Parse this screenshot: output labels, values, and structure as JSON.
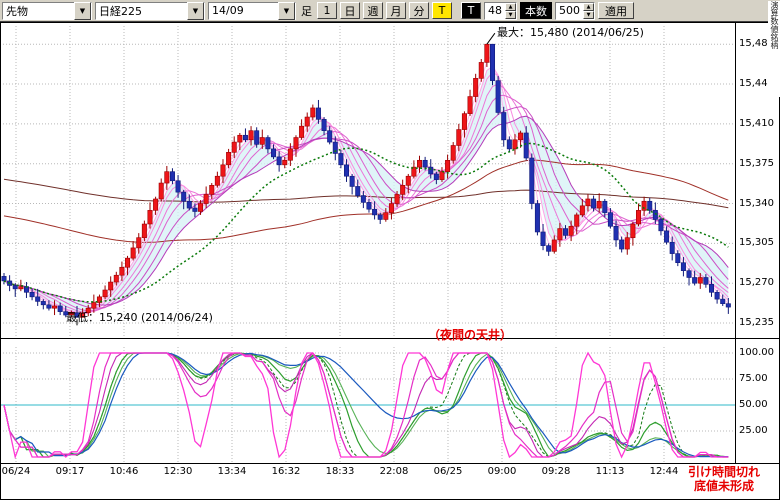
{
  "window": {
    "right_edge_vertical_label": "演算数値銘柄"
  },
  "toolbar": {
    "instrument": "先物",
    "symbol": "日経225",
    "contract_month": "14/09",
    "ashi_label": "足",
    "period_buttons": [
      "1",
      "日",
      "週",
      "月",
      "分"
    ],
    "tick_button": "T",
    "tick_label": "T",
    "tick_count": "48",
    "bars_label": "本数",
    "bars_count": "500",
    "apply_button": "適用",
    "active_color": "#ffe600",
    "dropdown_glyph": "▼",
    "spin_up_glyph": "▲",
    "spin_down_glyph": "▼"
  },
  "chart_data": {
    "type": "candlestick",
    "main": {
      "y_axis_labels": [
        "15,480",
        "15,445",
        "15,410",
        "15,375",
        "15,340",
        "15,305",
        "15,270",
        "15,235"
      ],
      "x_axis_labels": [
        "06/24",
        "09:17",
        "10:46",
        "12:30",
        "13:34",
        "16:32",
        "18:33",
        "22:08",
        "06/25",
        "09:00",
        "09:28",
        "11:13",
        "12:44"
      ],
      "session_high": 15480,
      "session_low": 15240,
      "candles_close": [
        15272,
        15268,
        15265,
        15267,
        15262,
        15258,
        15254,
        15251,
        15248,
        15250,
        15245,
        15242,
        15244,
        15240,
        15244,
        15248,
        15253,
        15258,
        15264,
        15271,
        15277,
        15284,
        15292,
        15301,
        15310,
        15322,
        15334,
        15344,
        15358,
        15368,
        15360,
        15350,
        15342,
        15336,
        15333,
        15340,
        15348,
        15356,
        15364,
        15374,
        15385,
        15394,
        15400,
        15396,
        15404,
        15392,
        15398,
        15388,
        15381,
        15374,
        15378,
        15388,
        15398,
        15408,
        15416,
        15424,
        15414,
        15404,
        15394,
        15384,
        15374,
        15364,
        15355,
        15347,
        15341,
        15335,
        15330,
        15326,
        15332,
        15340,
        15348,
        15356,
        15364,
        15372,
        15378,
        15372,
        15366,
        15361,
        15368,
        15378,
        15391,
        15405,
        15419,
        15434,
        15450,
        15464,
        15480,
        15448,
        15420,
        15396,
        15388,
        15396,
        15402,
        15380,
        15340,
        15315,
        15303,
        15298,
        15308,
        15318,
        15312,
        15320,
        15330,
        15338,
        15344,
        15336,
        15342,
        15332,
        15320,
        15308,
        15300,
        15310,
        15322,
        15334,
        15342,
        15334,
        15326,
        15316,
        15306,
        15296,
        15288,
        15281,
        15275,
        15270,
        15275,
        15269,
        15262,
        15256,
        15252,
        15249
      ],
      "annotations": {
        "max_label": "最大：15,480 (2014/06/25)",
        "min_label": "最低：15,240 (2014/06/24)",
        "ceiling_label": "（夜間の天井）"
      },
      "colors": {
        "up": "#ee1519",
        "up_dark": "#9b0000",
        "down": "#2030b0",
        "down_dark": "#101a78",
        "fan": [
          "#ffd4f2",
          "#ffbcec",
          "#ffa4e6",
          "#f88de0",
          "#ec77d8",
          "#dd62cf",
          "#cb4ec5",
          "#b53cba"
        ],
        "ma_green": "#0a7a0a",
        "ma_long1": "#a03028",
        "ma_long2": "#70302a",
        "cloud": "#d6f2f6"
      }
    },
    "oscillator": {
      "y_axis_labels": [
        "100.00",
        "75.00",
        "50.00",
        "25.00"
      ],
      "mid_line": 50,
      "colors": {
        "magenta1": "#ff37d5",
        "magenta2": "#e52ec6",
        "magenta3": "#c428b4",
        "green1": "#2e9e2e",
        "green2": "#57b257",
        "green3": "#157a15",
        "blue": "#1b5abf",
        "mid": "#2fb9c9"
      }
    }
  },
  "footer_notes": [
    "引け時間切れ",
    "底値未形成"
  ],
  "note_color": "#e60000"
}
